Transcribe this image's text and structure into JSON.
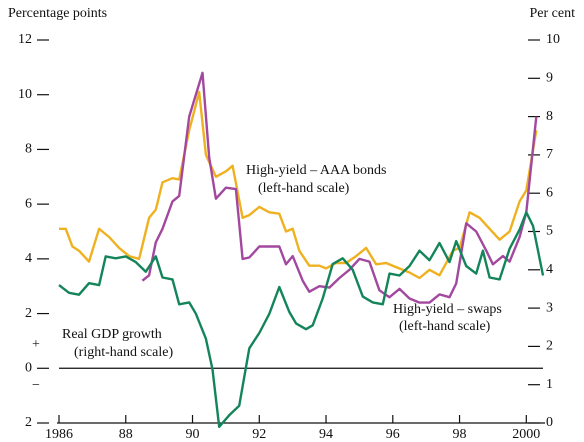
{
  "chart_data": {
    "type": "line",
    "y_label": "Percentage points",
    "y2_label": "Per cent",
    "annotations": [
      "High-yield – AAA bonds",
      "(left-hand scale)",
      "High-yield – swaps",
      "(left-hand scale)",
      "Real GDP growth",
      "(right-hand scale)",
      "+",
      "−"
    ],
    "xlim": [
      1986,
      2000.5
    ],
    "xticks": [
      {
        "value": 1986,
        "label": "1986"
      },
      {
        "value": 1988,
        "label": "88"
      },
      {
        "value": 1990,
        "label": "90"
      },
      {
        "value": 1992,
        "label": "92"
      },
      {
        "value": 1994,
        "label": "94"
      },
      {
        "value": 1996,
        "label": "96"
      },
      {
        "value": 1998,
        "label": "98"
      },
      {
        "value": 2000,
        "label": "2000"
      }
    ],
    "ylim": [
      -2,
      12
    ],
    "yticks": [
      {
        "value": -2,
        "label": "2"
      },
      0,
      2,
      4,
      6,
      8,
      10,
      12
    ],
    "y2lim": [
      0,
      10
    ],
    "y2ticks": [
      0,
      1,
      2,
      3,
      4,
      5,
      6,
      7,
      8,
      9,
      10
    ],
    "zero_line": true,
    "series": [
      {
        "name": "High-yield – AAA bonds",
        "color": "#efb120",
        "x": [
          1986.0,
          1986.2,
          1986.4,
          1986.6,
          1986.9,
          1987.2,
          1987.5,
          1987.8,
          1988.1,
          1988.4,
          1988.7,
          1988.9,
          1989.1,
          1989.4,
          1989.6,
          1989.9,
          1990.2,
          1990.4,
          1990.7,
          1991.0,
          1991.2,
          1991.5,
          1991.7,
          1992.0,
          1992.3,
          1992.6,
          1992.8,
          1993.0,
          1993.2,
          1993.5,
          1993.8,
          1994.0,
          1994.3,
          1994.6,
          1994.9,
          1995.2,
          1995.5,
          1995.8,
          1996.1,
          1996.5,
          1996.8,
          1997.1,
          1997.4,
          1997.8,
          1998.0,
          1998.3,
          1998.6,
          1998.9,
          1999.2,
          1999.5,
          1999.8,
          2000.0,
          2000.3
        ],
        "values": [
          5.1,
          5.1,
          4.45,
          4.3,
          3.9,
          5.1,
          4.8,
          4.4,
          4.1,
          4.0,
          5.5,
          5.8,
          6.8,
          6.95,
          6.9,
          8.7,
          10.1,
          7.8,
          7.0,
          7.2,
          7.4,
          5.5,
          5.6,
          5.9,
          5.7,
          5.65,
          5.0,
          5.1,
          4.3,
          3.75,
          3.75,
          3.65,
          3.85,
          3.85,
          4.1,
          4.4,
          3.8,
          3.85,
          3.7,
          3.5,
          3.3,
          3.6,
          3.4,
          4.3,
          4.4,
          5.7,
          5.5,
          5.1,
          4.7,
          5.0,
          6.1,
          6.5,
          8.7
        ]
      },
      {
        "name": "High-yield – swaps",
        "color": "#a2489f",
        "x": [
          1988.5,
          1988.7,
          1988.9,
          1989.1,
          1989.4,
          1989.6,
          1989.9,
          1990.3,
          1990.5,
          1990.7,
          1991.0,
          1991.3,
          1991.5,
          1991.7,
          1992.0,
          1992.3,
          1992.6,
          1992.8,
          1993.0,
          1993.3,
          1993.5,
          1993.8,
          1994.1,
          1994.4,
          1994.7,
          1995.0,
          1995.3,
          1995.6,
          1995.9,
          1996.2,
          1996.5,
          1996.8,
          1997.1,
          1997.4,
          1997.7,
          1997.9,
          1998.2,
          1998.5,
          1998.8,
          1999.0,
          1999.3,
          1999.5,
          1999.8,
          2000.0,
          2000.3
        ],
        "values": [
          3.2,
          3.4,
          4.6,
          5.1,
          6.1,
          6.3,
          9.2,
          10.8,
          7.7,
          6.2,
          6.6,
          6.55,
          4.0,
          4.05,
          4.45,
          4.45,
          4.45,
          3.8,
          4.1,
          3.2,
          2.8,
          3.0,
          2.95,
          3.3,
          3.6,
          4.0,
          3.9,
          2.85,
          2.6,
          2.9,
          2.55,
          2.4,
          2.4,
          2.7,
          2.6,
          3.1,
          5.3,
          5.0,
          4.3,
          3.8,
          4.1,
          3.9,
          4.8,
          5.7,
          9.2
        ]
      },
      {
        "name": "Real GDP growth",
        "color": "#14855a",
        "axis": "y2",
        "x": [
          1986.0,
          1986.3,
          1986.6,
          1986.9,
          1987.2,
          1987.4,
          1987.7,
          1988.0,
          1988.3,
          1988.6,
          1988.9,
          1989.1,
          1989.4,
          1989.6,
          1989.9,
          1990.1,
          1990.4,
          1990.6,
          1990.8,
          1991.1,
          1991.4,
          1991.7,
          1992.0,
          1992.3,
          1992.6,
          1992.9,
          1993.1,
          1993.4,
          1993.6,
          1993.9,
          1994.2,
          1994.5,
          1994.8,
          1995.1,
          1995.4,
          1995.7,
          1995.9,
          1996.2,
          1996.5,
          1996.8,
          1997.1,
          1997.4,
          1997.7,
          1997.9,
          1998.2,
          1998.5,
          1998.7,
          1998.9,
          1999.2,
          1999.5,
          1999.8,
          2000.0,
          2000.2,
          2000.5
        ],
        "values": [
          3.6,
          3.4,
          3.35,
          3.65,
          3.6,
          4.35,
          4.3,
          4.35,
          4.2,
          3.95,
          4.35,
          3.8,
          3.75,
          3.1,
          3.15,
          2.85,
          2.2,
          1.4,
          -0.1,
          0.2,
          0.45,
          1.95,
          2.35,
          2.85,
          3.55,
          2.9,
          2.6,
          2.45,
          2.55,
          3.25,
          4.15,
          4.3,
          4.0,
          3.3,
          3.15,
          3.1,
          3.9,
          3.85,
          4.1,
          4.5,
          4.25,
          4.7,
          4.2,
          4.75,
          4.1,
          3.9,
          4.5,
          3.8,
          3.75,
          4.55,
          5.05,
          5.5,
          5.15,
          3.85
        ]
      }
    ]
  }
}
